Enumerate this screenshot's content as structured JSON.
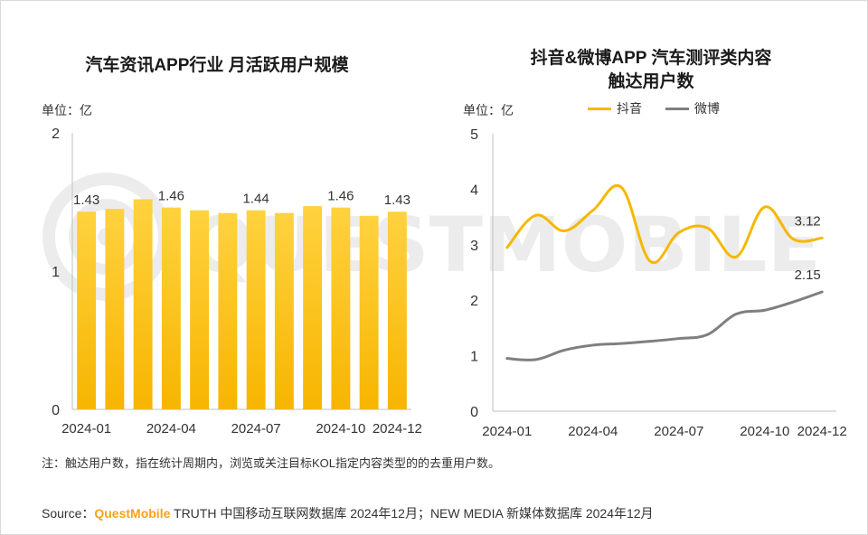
{
  "left_chart": {
    "title": "汽车资讯APP行业 月活跃用户规模",
    "unit": "单位：亿"
  },
  "right_chart": {
    "title_line1": "抖音&微博APP 汽车测评类内容",
    "title_line2": "触达用户数",
    "unit": "单位：亿"
  },
  "watermark": "QUESTMOBILE",
  "note": "注：触达用户数，指在统计周期内，浏览或关注目标KOL指定内容类型的的去重用户数。",
  "source": {
    "prefix": "Source：",
    "brand": "QuestMobile",
    "rest": " TRUTH 中国移动互联网数据库 2024年12月；NEW MEDIA 新媒体数据库 2024年12月"
  },
  "colors": {
    "bar_top": "#ffd23f",
    "bar_bottom": "#f7b500",
    "douyin": "#f5b800",
    "weibo": "#7f7f7f",
    "axis": "#bfbfbf",
    "brand": "#f5a21d"
  },
  "chart_data": [
    {
      "type": "bar",
      "title": "汽车资讯APP行业 月活跃用户规模",
      "categories": [
        "2024-01",
        "2024-02",
        "2024-03",
        "2024-04",
        "2024-05",
        "2024-06",
        "2024-07",
        "2024-08",
        "2024-09",
        "2024-10",
        "2024-11",
        "2024-12"
      ],
      "series": [
        {
          "name": "月活跃用户规模",
          "values": [
            1.43,
            1.45,
            1.52,
            1.46,
            1.44,
            1.42,
            1.44,
            1.42,
            1.47,
            1.46,
            1.4,
            1.43
          ]
        }
      ],
      "data_labels": [
        {
          "index": 0,
          "text": "1.43"
        },
        {
          "index": 3,
          "text": "1.46"
        },
        {
          "index": 6,
          "text": "1.44"
        },
        {
          "index": 9,
          "text": "1.46"
        },
        {
          "index": 11,
          "text": "1.43"
        }
      ],
      "x_tick_labels": [
        {
          "index": 0,
          "text": "2024-01"
        },
        {
          "index": 3,
          "text": "2024-04"
        },
        {
          "index": 6,
          "text": "2024-07"
        },
        {
          "index": 9,
          "text": "2024-10"
        },
        {
          "index": 11,
          "text": "2024-12"
        }
      ],
      "y_ticks": [
        0,
        1,
        2
      ],
      "ylim": [
        0,
        2
      ],
      "ylabel": "单位：亿",
      "grid": false
    },
    {
      "type": "line",
      "title": "抖音&微博APP 汽车测评类内容 触达用户数",
      "categories": [
        "2024-01",
        "2024-02",
        "2024-03",
        "2024-04",
        "2024-05",
        "2024-06",
        "2024-07",
        "2024-08",
        "2024-09",
        "2024-10",
        "2024-11",
        "2024-12"
      ],
      "series": [
        {
          "name": "抖音",
          "values": [
            2.95,
            3.53,
            3.25,
            3.62,
            4.03,
            2.7,
            3.22,
            3.3,
            2.78,
            3.68,
            3.1,
            3.12
          ]
        },
        {
          "name": "微博",
          "values": [
            0.95,
            0.93,
            1.1,
            1.19,
            1.22,
            1.26,
            1.31,
            1.38,
            1.75,
            1.82,
            1.97,
            2.15
          ]
        }
      ],
      "end_labels": [
        {
          "series": "抖音",
          "text": "3.12"
        },
        {
          "series": "微博",
          "text": "2.15"
        }
      ],
      "x_tick_labels": [
        {
          "index": 0,
          "text": "2024-01"
        },
        {
          "index": 3,
          "text": "2024-04"
        },
        {
          "index": 6,
          "text": "2024-07"
        },
        {
          "index": 9,
          "text": "2024-10"
        },
        {
          "index": 11,
          "text": "2024-12"
        }
      ],
      "y_ticks": [
        0,
        1,
        2,
        3,
        4,
        5
      ],
      "ylim": [
        0,
        5
      ],
      "ylabel": "单位：亿",
      "legend": "top-center",
      "grid": false
    }
  ]
}
